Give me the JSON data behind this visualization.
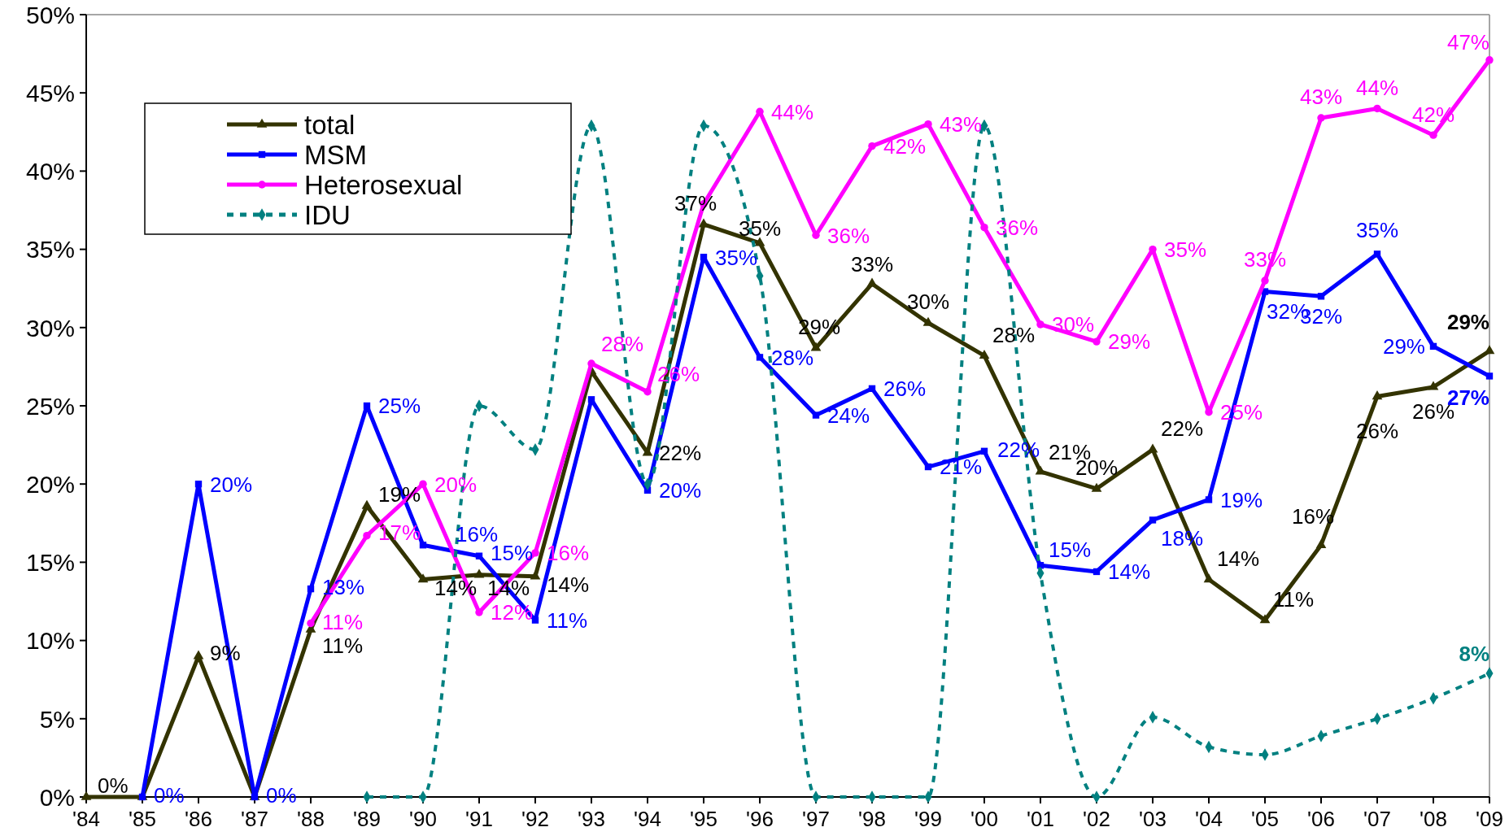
{
  "chart_data": {
    "type": "line",
    "categories": [
      "'84",
      "'85",
      "'86",
      "'87",
      "'88",
      "'89",
      "'90",
      "'91",
      "'92",
      "'93",
      "'94",
      "'95",
      "'96",
      "'97",
      "'98",
      "'99",
      "'00",
      "'01",
      "'02",
      "'03",
      "'04",
      "'05",
      "'06",
      "'07",
      "'08",
      "'09"
    ],
    "ylim": [
      0,
      50
    ],
    "yticks": [
      {
        "value": 0,
        "label": "0%"
      },
      {
        "value": 5,
        "label": "5%"
      },
      {
        "value": 10,
        "label": "10%"
      },
      {
        "value": 15,
        "label": "15%"
      },
      {
        "value": 20,
        "label": "20%"
      },
      {
        "value": 25,
        "label": "25%"
      },
      {
        "value": 30,
        "label": "30%"
      },
      {
        "value": 35,
        "label": "35%"
      },
      {
        "value": 40,
        "label": "40%"
      },
      {
        "value": 45,
        "label": "45%"
      },
      {
        "value": 50,
        "label": "50%"
      }
    ],
    "grid": false,
    "legend": "top left",
    "series": [
      {
        "name": "total",
        "color": "#333300",
        "marker": "triangle",
        "line_style": "solid",
        "values": [
          0,
          0,
          9,
          0,
          10.7,
          18.6,
          13.9,
          14.2,
          14.1,
          27.2,
          22,
          36.6,
          35.4,
          28.7,
          32.8,
          30.3,
          28.2,
          20.8,
          19.7,
          22.2,
          13.9,
          11.3,
          16.1,
          25.6,
          26.2,
          28.5
        ],
        "value_labels": [
          "0%",
          null,
          "9%",
          null,
          "11%",
          "19%",
          "14%",
          "14%",
          "14%",
          null,
          "22%",
          "37%",
          "35%",
          "29%",
          "33%",
          "30%",
          "28%",
          "21%",
          "20%",
          "22%",
          "14%",
          "11%",
          "16%",
          "26%",
          "26%",
          "29%"
        ]
      },
      {
        "name": "MSM",
        "color": "#0000ff",
        "marker": "square",
        "line_style": "solid",
        "values": [
          null,
          0,
          20,
          0,
          13.3,
          25,
          16.1,
          15.4,
          11.3,
          25.4,
          19.6,
          34.5,
          28.1,
          24.4,
          26.1,
          21.1,
          22.1,
          14.8,
          14.4,
          17.7,
          19,
          32.3,
          32,
          34.7,
          28.8,
          26.9
        ],
        "value_labels": [
          null,
          "0%",
          "20%",
          "0%",
          "13%",
          "25%",
          "16%",
          "15%",
          "11%",
          null,
          "20%",
          "35%",
          "28%",
          "24%",
          "26%",
          "21%",
          "22%",
          "15%",
          "14%",
          "18%",
          "19%",
          "32%",
          "32%",
          "35%",
          "29%",
          "27%"
        ]
      },
      {
        "name": "Heterosexual",
        "color": "#ff00ff",
        "marker": "circle",
        "line_style": "solid",
        "values": [
          null,
          null,
          null,
          null,
          11.1,
          16.7,
          20,
          11.8,
          15.6,
          27.7,
          25.9,
          37.9,
          43.8,
          35.9,
          41.6,
          43,
          36.4,
          30.2,
          29.1,
          35,
          24.6,
          33,
          43.4,
          44,
          42.3,
          47.1
        ],
        "value_labels": [
          null,
          null,
          null,
          null,
          "11%",
          "17%",
          "20%",
          "12%",
          "16%",
          "28%",
          "26%",
          null,
          "44%",
          "36%",
          "42%",
          "43%",
          "36%",
          "30%",
          "29%",
          "35%",
          "25%",
          "33%",
          "43%",
          "44%",
          "42%",
          "47%"
        ]
      },
      {
        "name": "IDU",
        "color": "#008080",
        "marker": "diamond",
        "line_style": "dashed",
        "values": [
          null,
          null,
          null,
          null,
          null,
          0,
          0,
          25,
          22.2,
          42.9,
          20,
          42.9,
          33.3,
          0,
          0,
          0,
          42.9,
          14.3,
          0,
          5.1,
          3.2,
          2.7,
          3.9,
          5,
          6.3,
          7.9
        ],
        "value_labels": [
          null,
          null,
          null,
          null,
          null,
          null,
          null,
          null,
          null,
          null,
          null,
          null,
          null,
          null,
          null,
          null,
          null,
          null,
          null,
          null,
          null,
          null,
          null,
          null,
          null,
          "8%"
        ]
      }
    ]
  }
}
